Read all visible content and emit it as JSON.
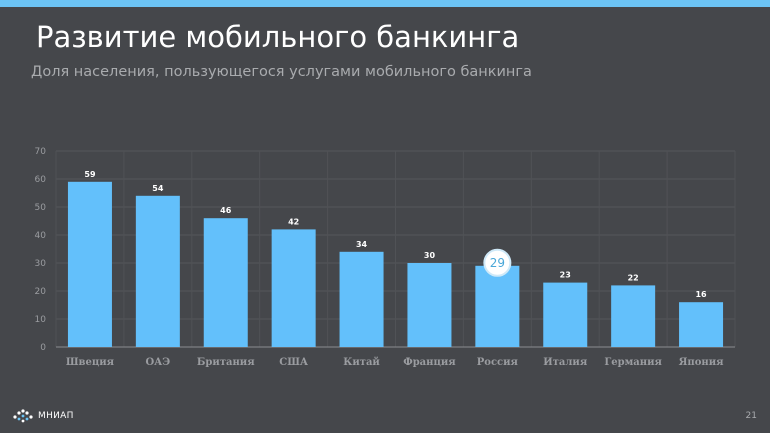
{
  "slide": {
    "title": "Развитие мобильного банкинга",
    "subtitle": "Доля населения, пользующегося услугами мобильного банкинга",
    "page_number": "21",
    "logo_text": "МНИАП",
    "accent_color": "#6cc4f5",
    "background_color": "#45474b"
  },
  "chart_data": {
    "type": "bar",
    "title": "",
    "xlabel": "",
    "ylabel": "",
    "categories": [
      "Швеция",
      "ОАЭ",
      "Британия",
      "США",
      "Китай",
      "Франция",
      "Россия",
      "Италия",
      "Германия",
      "Япония"
    ],
    "values": [
      59,
      54,
      46,
      42,
      34,
      30,
      29,
      23,
      22,
      16
    ],
    "data_labels": [
      "59",
      "54",
      "46",
      "42",
      "34",
      "30",
      "29",
      "23",
      "22",
      "16"
    ],
    "ylim": [
      0,
      70
    ],
    "yticks": [
      0,
      10,
      20,
      30,
      40,
      50,
      60,
      70
    ],
    "ytick_labels": [
      "0",
      "10",
      "20",
      "30",
      "40",
      "50",
      "60",
      "70"
    ],
    "grid": true,
    "bar_color": "#63c0fb",
    "highlight": {
      "category": "Россия",
      "label": "29",
      "style": "circle"
    }
  }
}
